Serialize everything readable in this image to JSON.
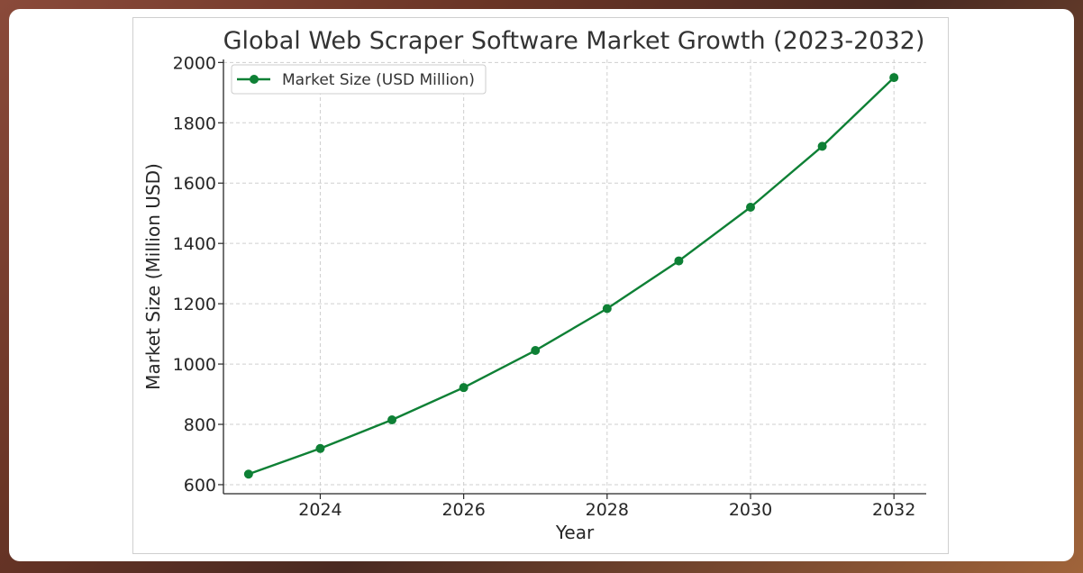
{
  "chart_data": {
    "type": "line",
    "title": "Global Web Scraper Software Market Growth (2023-2032)",
    "xlabel": "Year",
    "ylabel": "Market Size (Million USD)",
    "x": [
      2023,
      2024,
      2025,
      2026,
      2027,
      2028,
      2029,
      2030,
      2031,
      2032
    ],
    "series": [
      {
        "name": "Market Size (USD Million)",
        "values": [
          635,
          720,
          815,
          922,
          1045,
          1184,
          1342,
          1520,
          1722,
          1950
        ],
        "color": "#0e8035",
        "marker": "circle"
      }
    ],
    "xticks": [
      "2024",
      "2026",
      "2028",
      "2030",
      "2032"
    ],
    "yticks": [
      "600",
      "800",
      "1000",
      "1200",
      "1400",
      "1600",
      "1800",
      "2000"
    ],
    "xlim": [
      2022.65,
      2032.45
    ],
    "ylim": [
      570,
      2010
    ],
    "grid": true,
    "legend_position": "top-left"
  }
}
